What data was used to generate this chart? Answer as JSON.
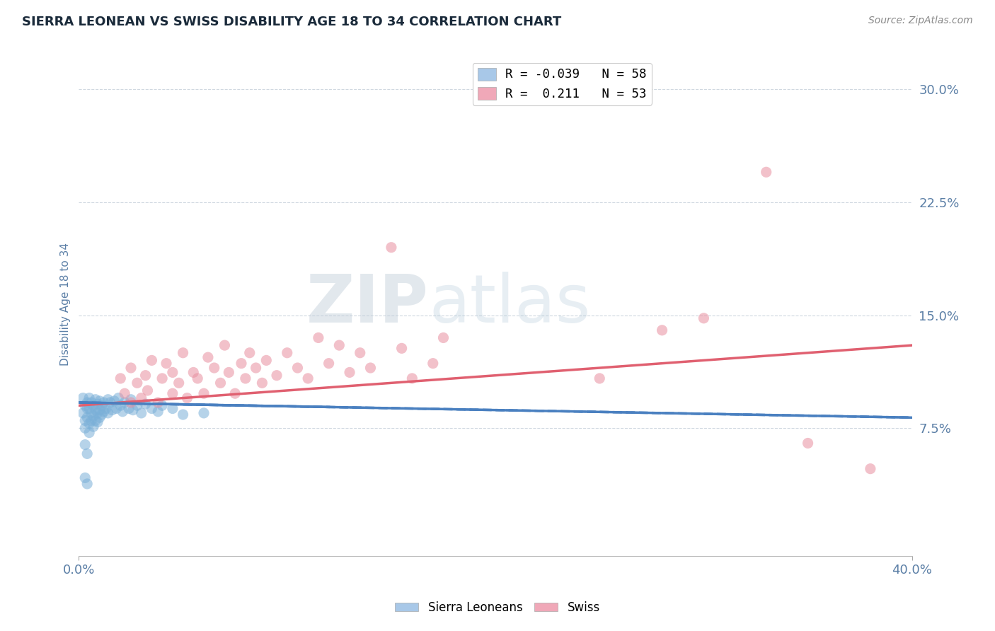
{
  "title": "SIERRA LEONEAN VS SWISS DISABILITY AGE 18 TO 34 CORRELATION CHART",
  "source_text": "Source: ZipAtlas.com",
  "ylabel": "Disability Age 18 to 34",
  "xlim": [
    0.0,
    0.4
  ],
  "ylim": [
    -0.01,
    0.325
  ],
  "yticks": [
    0.075,
    0.15,
    0.225,
    0.3
  ],
  "ytick_labels": [
    "7.5%",
    "15.0%",
    "22.5%",
    "30.0%"
  ],
  "xticks": [
    0.0,
    0.4
  ],
  "xtick_labels": [
    "0.0%",
    "40.0%"
  ],
  "legend_r1": "R = -0.039   N = 58",
  "legend_r2": "R =  0.211   N = 53",
  "legend_bottom": [
    "Sierra Leoneans",
    "Swiss"
  ],
  "blue_scatter": [
    [
      0.002,
      0.095
    ],
    [
      0.002,
      0.085
    ],
    [
      0.003,
      0.09
    ],
    [
      0.003,
      0.08
    ],
    [
      0.003,
      0.075
    ],
    [
      0.004,
      0.092
    ],
    [
      0.004,
      0.088
    ],
    [
      0.004,
      0.082
    ],
    [
      0.005,
      0.095
    ],
    [
      0.005,
      0.088
    ],
    [
      0.005,
      0.078
    ],
    [
      0.005,
      0.072
    ],
    [
      0.006,
      0.092
    ],
    [
      0.006,
      0.085
    ],
    [
      0.006,
      0.08
    ],
    [
      0.007,
      0.09
    ],
    [
      0.007,
      0.083
    ],
    [
      0.007,
      0.076
    ],
    [
      0.008,
      0.094
    ],
    [
      0.008,
      0.087
    ],
    [
      0.008,
      0.08
    ],
    [
      0.009,
      0.091
    ],
    [
      0.009,
      0.085
    ],
    [
      0.009,
      0.079
    ],
    [
      0.01,
      0.093
    ],
    [
      0.01,
      0.087
    ],
    [
      0.01,
      0.082
    ],
    [
      0.011,
      0.09
    ],
    [
      0.011,
      0.084
    ],
    [
      0.012,
      0.092
    ],
    [
      0.012,
      0.086
    ],
    [
      0.013,
      0.088
    ],
    [
      0.014,
      0.094
    ],
    [
      0.014,
      0.085
    ],
    [
      0.015,
      0.092
    ],
    [
      0.016,
      0.087
    ],
    [
      0.017,
      0.093
    ],
    [
      0.018,
      0.088
    ],
    [
      0.019,
      0.095
    ],
    [
      0.02,
      0.09
    ],
    [
      0.021,
      0.086
    ],
    [
      0.022,
      0.092
    ],
    [
      0.024,
      0.088
    ],
    [
      0.025,
      0.094
    ],
    [
      0.026,
      0.087
    ],
    [
      0.028,
      0.09
    ],
    [
      0.03,
      0.085
    ],
    [
      0.032,
      0.091
    ],
    [
      0.035,
      0.088
    ],
    [
      0.038,
      0.086
    ],
    [
      0.04,
      0.09
    ],
    [
      0.045,
      0.088
    ],
    [
      0.05,
      0.084
    ],
    [
      0.06,
      0.085
    ],
    [
      0.003,
      0.064
    ],
    [
      0.004,
      0.058
    ],
    [
      0.003,
      0.042
    ],
    [
      0.004,
      0.038
    ]
  ],
  "pink_scatter": [
    [
      0.02,
      0.108
    ],
    [
      0.022,
      0.098
    ],
    [
      0.025,
      0.092
    ],
    [
      0.025,
      0.115
    ],
    [
      0.028,
      0.105
    ],
    [
      0.03,
      0.095
    ],
    [
      0.032,
      0.11
    ],
    [
      0.033,
      0.1
    ],
    [
      0.035,
      0.12
    ],
    [
      0.038,
      0.092
    ],
    [
      0.04,
      0.108
    ],
    [
      0.042,
      0.118
    ],
    [
      0.045,
      0.098
    ],
    [
      0.045,
      0.112
    ],
    [
      0.048,
      0.105
    ],
    [
      0.05,
      0.125
    ],
    [
      0.052,
      0.095
    ],
    [
      0.055,
      0.112
    ],
    [
      0.057,
      0.108
    ],
    [
      0.06,
      0.098
    ],
    [
      0.062,
      0.122
    ],
    [
      0.065,
      0.115
    ],
    [
      0.068,
      0.105
    ],
    [
      0.07,
      0.13
    ],
    [
      0.072,
      0.112
    ],
    [
      0.075,
      0.098
    ],
    [
      0.078,
      0.118
    ],
    [
      0.08,
      0.108
    ],
    [
      0.082,
      0.125
    ],
    [
      0.085,
      0.115
    ],
    [
      0.088,
      0.105
    ],
    [
      0.09,
      0.12
    ],
    [
      0.095,
      0.11
    ],
    [
      0.1,
      0.125
    ],
    [
      0.105,
      0.115
    ],
    [
      0.11,
      0.108
    ],
    [
      0.115,
      0.135
    ],
    [
      0.12,
      0.118
    ],
    [
      0.125,
      0.13
    ],
    [
      0.13,
      0.112
    ],
    [
      0.135,
      0.125
    ],
    [
      0.14,
      0.115
    ],
    [
      0.15,
      0.195
    ],
    [
      0.155,
      0.128
    ],
    [
      0.16,
      0.108
    ],
    [
      0.17,
      0.118
    ],
    [
      0.175,
      0.135
    ],
    [
      0.25,
      0.108
    ],
    [
      0.28,
      0.14
    ],
    [
      0.3,
      0.148
    ],
    [
      0.33,
      0.245
    ],
    [
      0.35,
      0.065
    ],
    [
      0.38,
      0.048
    ]
  ],
  "watermark_zip": "ZIP",
  "watermark_atlas": "atlas",
  "scatter_alpha": 0.55,
  "scatter_size": 120,
  "blue_color": "#7ab0d8",
  "pink_color": "#e88fa0",
  "blue_line_color": "#4a80c0",
  "pink_line_color": "#e06070",
  "grid_color": "#d0d8e0",
  "bg_color": "#ffffff",
  "title_color": "#1a2a3a",
  "axis_label_color": "#5b7fa6",
  "tick_color": "#5b7fa6",
  "legend_color_blue": "#a8c8e8",
  "legend_color_pink": "#f0a8b8"
}
